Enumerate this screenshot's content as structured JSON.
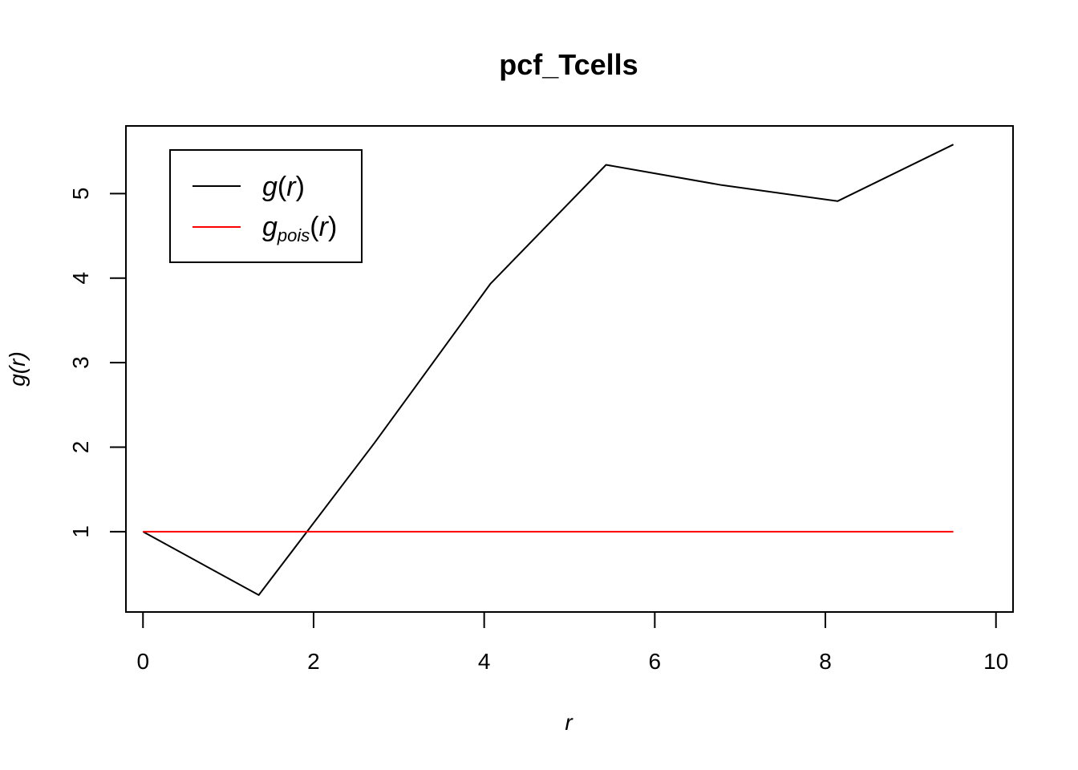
{
  "chart_data": {
    "type": "line",
    "title": "pcf_Tcells",
    "xlabel": "r",
    "ylabel": "g(r)",
    "xlim": [
      -0.2,
      10.2
    ],
    "ylim": [
      0.05,
      5.8
    ],
    "x_ticks": [
      0,
      2,
      4,
      6,
      8,
      10
    ],
    "y_ticks": [
      1,
      2,
      3,
      4,
      5
    ],
    "grid": false,
    "legend_position": "top-left",
    "series": [
      {
        "name": "g(r)",
        "color": "#000000",
        "x": [
          0,
          1.357,
          2.714,
          4.071,
          5.429,
          6.786,
          8.143,
          9.5
        ],
        "y": [
          1.0,
          0.25,
          2.05,
          3.93,
          5.34,
          5.1,
          4.91,
          5.58
        ]
      },
      {
        "name": "g_pois(r)",
        "color": "#ff0000",
        "x": [
          0,
          9.5
        ],
        "y": [
          1.0,
          1.0
        ]
      }
    ],
    "legend": {
      "entry1": {
        "main": "g",
        "open": "(",
        "var": "r",
        "close": ")"
      },
      "entry2": {
        "main": "g",
        "sub": "pois",
        "open": "(",
        "var": "r",
        "close": ")"
      }
    }
  }
}
